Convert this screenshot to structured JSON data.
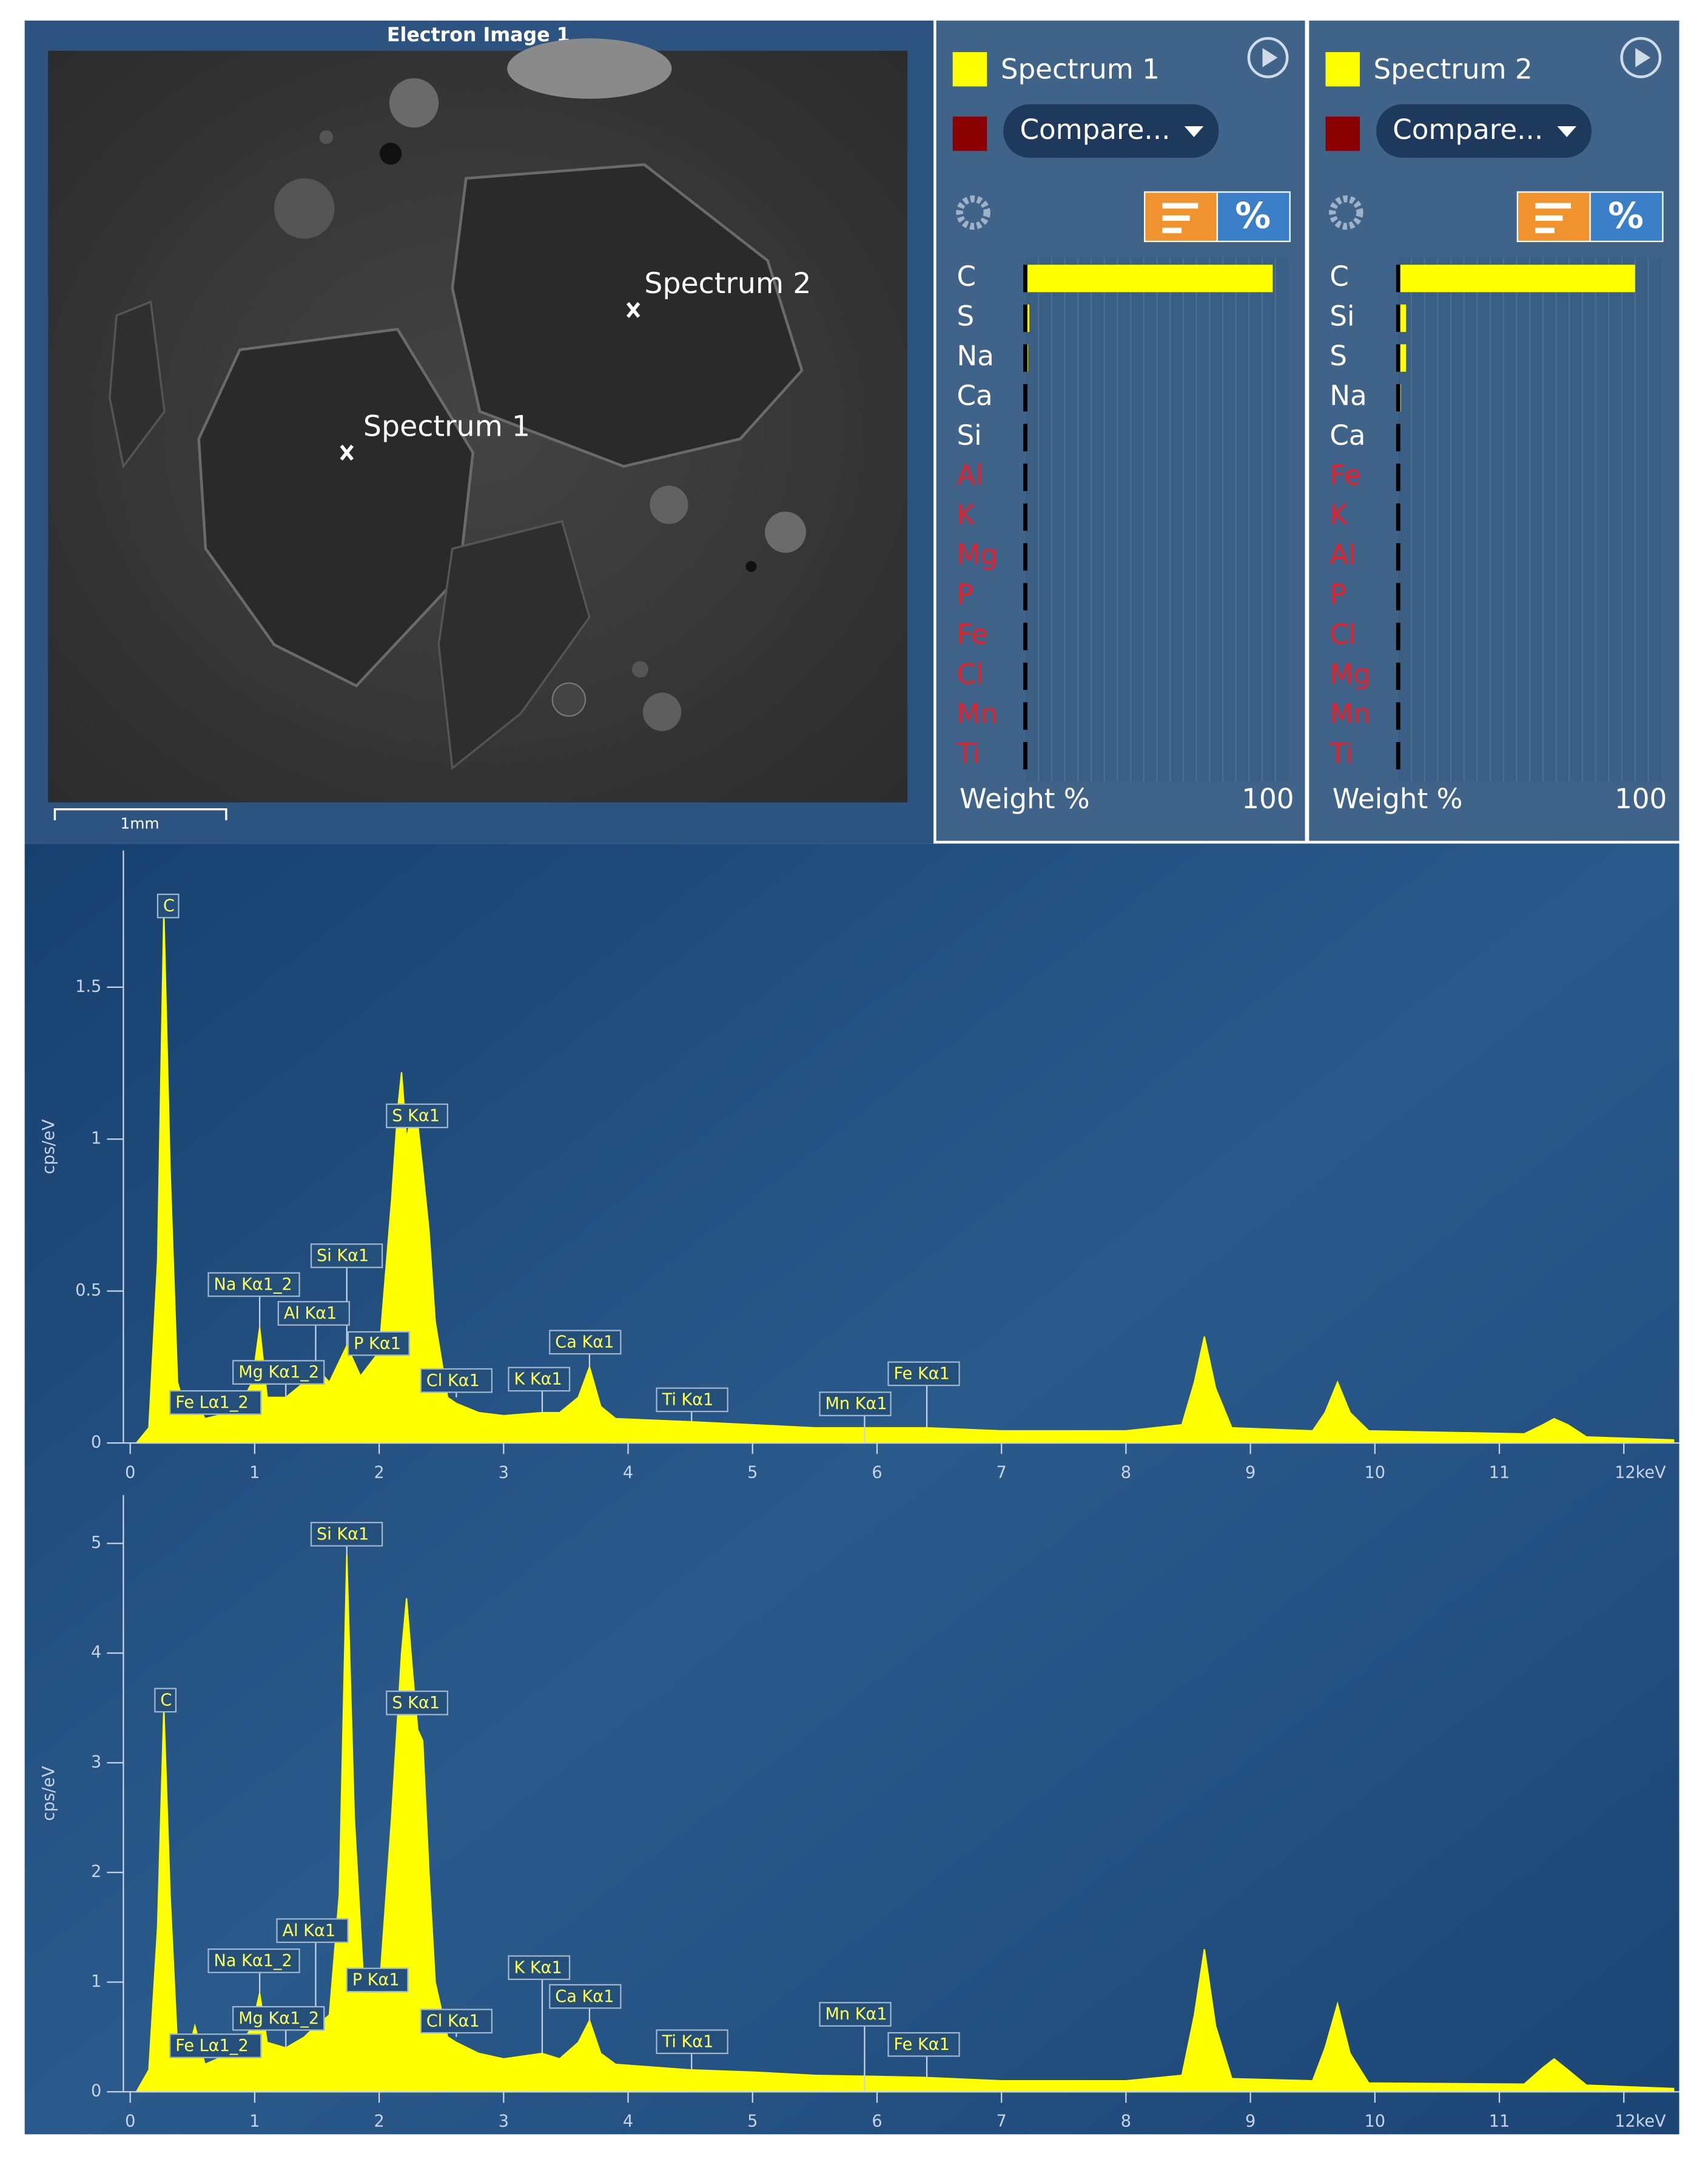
{
  "electron_image": {
    "title": "Electron Image 1",
    "markers": [
      {
        "label": "Spectrum 1"
      },
      {
        "label": "Spectrum 2"
      }
    ],
    "scale_bar": "1mm"
  },
  "panels": [
    {
      "legend": "Spectrum 1",
      "compare": "Compare...",
      "percent_button": "%"
    },
    {
      "legend": "Spectrum 2",
      "compare": "Compare...",
      "percent_button": "%"
    }
  ],
  "chart_data": [
    {
      "type": "bar",
      "orientation": "horizontal",
      "color": "#ffff00",
      "categories": [
        "C",
        "S",
        "Na",
        "Ca",
        "Si",
        "Al",
        "K",
        "Mg",
        "P",
        "Fe",
        "Cl",
        "Mn",
        "Ti"
      ],
      "values": [
        94,
        1.5,
        1,
        0.5,
        0.5,
        0.3,
        0.3,
        0.3,
        0.3,
        0.3,
        0.3,
        0.3,
        0.3
      ],
      "category_colors": [
        "#ffffff",
        "#ffffff",
        "#ffffff",
        "#ffffff",
        "#ffffff",
        "#e8202a",
        "#e8202a",
        "#e8202a",
        "#e8202a",
        "#e8202a",
        "#e8202a",
        "#e8202a",
        "#e8202a"
      ],
      "xlim": [
        0,
        100
      ],
      "xticks": [
        100
      ],
      "xlabel": "Weight %"
    },
    {
      "type": "bar",
      "orientation": "horizontal",
      "color": "#ffff00",
      "categories": [
        "C",
        "Si",
        "S",
        "Na",
        "Ca",
        "Fe",
        "K",
        "Al",
        "P",
        "Cl",
        "Mg",
        "Mn",
        "Ti"
      ],
      "values": [
        90,
        3,
        3,
        1,
        0.5,
        0.3,
        0.3,
        0.3,
        0.3,
        0.3,
        0.3,
        0.3,
        0.3
      ],
      "category_colors": [
        "#ffffff",
        "#ffffff",
        "#ffffff",
        "#ffffff",
        "#ffffff",
        "#e8202a",
        "#e8202a",
        "#e8202a",
        "#e8202a",
        "#e8202a",
        "#e8202a",
        "#e8202a",
        "#e8202a"
      ],
      "xlim": [
        0,
        100
      ],
      "xticks": [
        100
      ],
      "xlabel": "Weight %"
    },
    {
      "type": "area",
      "color": "#ffff00",
      "ylabel": "cps/eV",
      "x": [
        0.05,
        0.15,
        0.22,
        0.27,
        0.32,
        0.38,
        0.45,
        0.52,
        0.6,
        0.7,
        0.85,
        0.98,
        1.04,
        1.1,
        1.25,
        1.4,
        1.49,
        1.6,
        1.74,
        1.85,
        2.0,
        2.1,
        2.15,
        2.18,
        2.22,
        2.27,
        2.31,
        2.35,
        2.4,
        2.45,
        2.55,
        2.62,
        2.8,
        3.0,
        3.31,
        3.45,
        3.6,
        3.69,
        3.78,
        3.9,
        4.5,
        5.0,
        5.5,
        6.0,
        6.4,
        7.0,
        8.0,
        8.45,
        8.55,
        8.63,
        8.72,
        8.85,
        9.5,
        9.6,
        9.7,
        9.8,
        9.95,
        11.2,
        11.35,
        11.44,
        11.55,
        11.7,
        12.4
      ],
      "values": [
        0,
        0.05,
        0.6,
        1.75,
        0.9,
        0.2,
        0.1,
        0.15,
        0.08,
        0.09,
        0.1,
        0.2,
        0.38,
        0.15,
        0.15,
        0.2,
        0.25,
        0.2,
        0.32,
        0.22,
        0.3,
        0.8,
        1.1,
        1.22,
        1.0,
        1.1,
        1.05,
        0.9,
        0.7,
        0.4,
        0.15,
        0.13,
        0.1,
        0.09,
        0.1,
        0.1,
        0.15,
        0.25,
        0.12,
        0.08,
        0.07,
        0.06,
        0.05,
        0.05,
        0.05,
        0.04,
        0.04,
        0.06,
        0.2,
        0.35,
        0.18,
        0.05,
        0.04,
        0.1,
        0.2,
        0.1,
        0.04,
        0.03,
        0.06,
        0.08,
        0.06,
        0.02,
        0.01
      ],
      "xlim": [
        0,
        12.44
      ],
      "xticks": [
        0,
        1,
        2,
        3,
        4,
        5,
        6,
        7,
        8,
        9,
        10,
        11,
        {
          "value": 12,
          "label": "12keV"
        }
      ],
      "ylim": [
        0,
        1.95
      ],
      "yticks": [
        0,
        0.5,
        1,
        1.5
      ],
      "annotations": [
        {
          "text": "C",
          "x": 0.27
        },
        {
          "text": "Na Kα1_2",
          "x": 1.04
        },
        {
          "text": "Si Kα1",
          "x": 1.74
        },
        {
          "text": "Al Kα1",
          "x": 1.49
        },
        {
          "text": "P Kα1",
          "x": 2.01
        },
        {
          "text": "Mg Kα1_2",
          "x": 1.25
        },
        {
          "text": "Fe Lα1_2",
          "x": 0.7
        },
        {
          "text": "S Kα1",
          "x": 2.31
        },
        {
          "text": "Cl Kα1",
          "x": 2.62
        },
        {
          "text": "K Kα1",
          "x": 3.31
        },
        {
          "text": "Ca Kα1",
          "x": 3.69
        },
        {
          "text": "Ti Kα1",
          "x": 4.51
        },
        {
          "text": "Mn Kα1",
          "x": 5.9
        },
        {
          "text": "Fe Kα1",
          "x": 6.4
        }
      ]
    },
    {
      "type": "area",
      "color": "#ffff00",
      "ylabel": "cps/eV",
      "x": [
        0.05,
        0.15,
        0.22,
        0.27,
        0.32,
        0.38,
        0.45,
        0.52,
        0.6,
        0.7,
        0.85,
        0.98,
        1.04,
        1.1,
        1.25,
        1.4,
        1.49,
        1.6,
        1.68,
        1.74,
        1.8,
        1.88,
        2.0,
        2.1,
        2.18,
        2.22,
        2.27,
        2.31,
        2.35,
        2.4,
        2.45,
        2.55,
        2.62,
        2.8,
        3.0,
        3.31,
        3.45,
        3.6,
        3.69,
        3.78,
        3.9,
        4.5,
        5.0,
        5.5,
        6.0,
        6.4,
        7.0,
        8.0,
        8.45,
        8.55,
        8.63,
        8.72,
        8.85,
        9.5,
        9.6,
        9.7,
        9.8,
        9.95,
        11.2,
        11.35,
        11.44,
        11.55,
        11.7,
        12.4
      ],
      "values": [
        0,
        0.2,
        1.5,
        3.5,
        1.8,
        0.4,
        0.3,
        0.6,
        0.25,
        0.3,
        0.35,
        0.6,
        0.9,
        0.45,
        0.4,
        0.5,
        0.6,
        0.7,
        1.8,
        4.9,
        2.5,
        0.9,
        0.9,
        2.5,
        4.0,
        4.5,
        3.8,
        3.3,
        3.2,
        2.0,
        1.0,
        0.5,
        0.45,
        0.35,
        0.3,
        0.35,
        0.3,
        0.45,
        0.65,
        0.35,
        0.25,
        0.2,
        0.18,
        0.15,
        0.14,
        0.13,
        0.1,
        0.1,
        0.15,
        0.7,
        1.3,
        0.6,
        0.12,
        0.1,
        0.4,
        0.8,
        0.35,
        0.08,
        0.07,
        0.22,
        0.3,
        0.2,
        0.06,
        0.03
      ],
      "xlim": [
        0,
        12.44
      ],
      "xticks": [
        0,
        1,
        2,
        3,
        4,
        5,
        6,
        7,
        8,
        9,
        10,
        11,
        {
          "value": 12,
          "label": "12keV"
        }
      ],
      "ylim": [
        0,
        5.44
      ],
      "yticks": [
        0,
        1,
        2,
        3,
        4,
        5
      ],
      "annotations": [
        {
          "text": "C",
          "x": 0.27
        },
        {
          "text": "Si Kα1",
          "x": 1.74
        },
        {
          "text": "S Kα1",
          "x": 2.31
        },
        {
          "text": "Al Kα1",
          "x": 1.49
        },
        {
          "text": "Na Kα1_2",
          "x": 1.04
        },
        {
          "text": "P Kα1",
          "x": 2.01
        },
        {
          "text": "Mg Kα1_2",
          "x": 1.25
        },
        {
          "text": "Fe Lα1_2",
          "x": 0.7
        },
        {
          "text": "Cl Kα1",
          "x": 2.62
        },
        {
          "text": "K Kα1",
          "x": 3.31
        },
        {
          "text": "Ca Kα1",
          "x": 3.69
        },
        {
          "text": "Ti Kα1",
          "x": 4.51
        },
        {
          "text": "Mn Kα1",
          "x": 5.9
        },
        {
          "text": "Fe Kα1",
          "x": 6.4
        }
      ]
    }
  ]
}
